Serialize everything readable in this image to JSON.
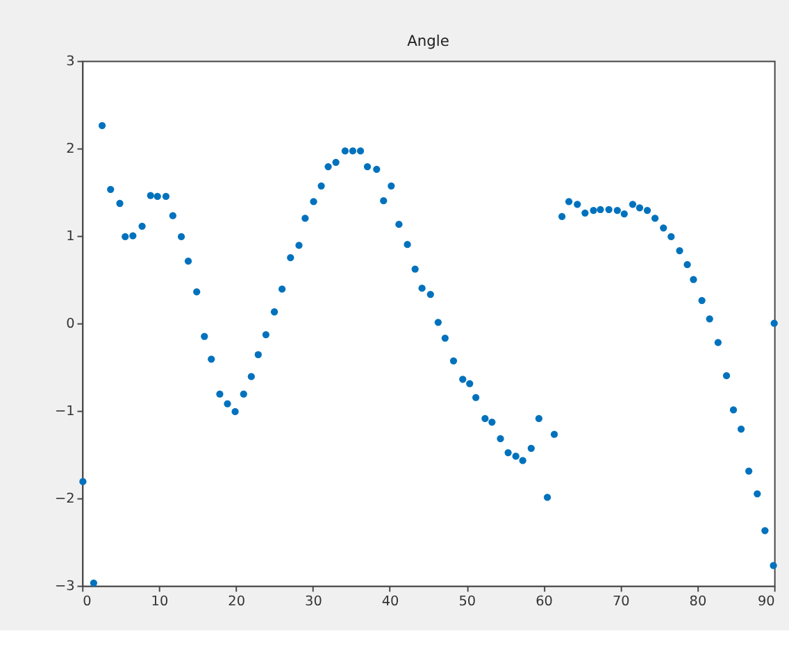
{
  "chart_data": {
    "type": "scatter",
    "title": "Angle",
    "marker": "circle",
    "grid": false,
    "xlim": [
      0,
      90
    ],
    "xticks": [
      0,
      10,
      20,
      30,
      40,
      50,
      60,
      70,
      80,
      90
    ],
    "ylim": [
      -3,
      3
    ],
    "yticks": [
      -3,
      -2,
      -1,
      0,
      1,
      2,
      3
    ],
    "series": [
      {
        "color": "#0072bd",
        "x": [
          0.1,
          1.5,
          2.6,
          3.7,
          4.9,
          5.6,
          6.6,
          7.8,
          8.9,
          9.8,
          10.9,
          11.8,
          12.9,
          13.8,
          14.9,
          15.9,
          16.8,
          17.9,
          18.9,
          19.9,
          21.0,
          22.0,
          22.9,
          23.9,
          25.0,
          26.0,
          27.1,
          28.2,
          29.0,
          30.1,
          31.1,
          32.0,
          33.0,
          34.2,
          35.2,
          36.2,
          37.1,
          38.3,
          39.2,
          40.2,
          41.2,
          42.3,
          43.3,
          44.2,
          45.3,
          46.3,
          47.2,
          48.3,
          49.5,
          50.4,
          51.2,
          52.4,
          53.3,
          54.4,
          55.4,
          56.4,
          57.3,
          58.4,
          59.4,
          60.5,
          61.4,
          62.4,
          63.3,
          64.4,
          65.4,
          66.5,
          67.4,
          68.5,
          69.6,
          70.5,
          71.6,
          72.5,
          73.5,
          74.5,
          75.6,
          76.6,
          77.7,
          78.7,
          79.5,
          80.6,
          81.6,
          82.7,
          83.8,
          84.7,
          85.7,
          86.7,
          87.8,
          88.8,
          89.9,
          90
        ],
        "values": [
          -1.81,
          -2.97,
          2.26,
          1.53,
          1.37,
          0.99,
          1.0,
          1.11,
          1.46,
          1.45,
          1.45,
          1.23,
          0.99,
          0.71,
          0.36,
          -0.15,
          -0.41,
          -0.81,
          -0.92,
          -1.01,
          -0.81,
          -0.61,
          -0.36,
          -0.13,
          0.13,
          0.39,
          0.75,
          0.89,
          1.2,
          1.39,
          1.57,
          1.79,
          1.84,
          1.97,
          1.97,
          1.97,
          1.79,
          1.76,
          1.4,
          1.57,
          1.13,
          0.9,
          0.62,
          0.4,
          0.33,
          0.01,
          -0.17,
          -0.43,
          -0.64,
          -0.69,
          -0.85,
          -1.09,
          -1.13,
          -1.32,
          -1.48,
          -1.52,
          -1.57,
          -1.43,
          -1.09,
          -1.99,
          -1.27,
          1.22,
          1.39,
          1.36,
          1.26,
          1.29,
          1.3,
          1.3,
          1.29,
          1.25,
          1.36,
          1.32,
          1.29,
          1.2,
          1.09,
          0.99,
          0.83,
          0.67,
          0.5,
          0.26,
          0.05,
          -0.22,
          -0.6,
          -0.99,
          -1.21,
          -1.69,
          -1.95,
          -2.37,
          -2.77,
          0.0
        ]
      }
    ]
  }
}
